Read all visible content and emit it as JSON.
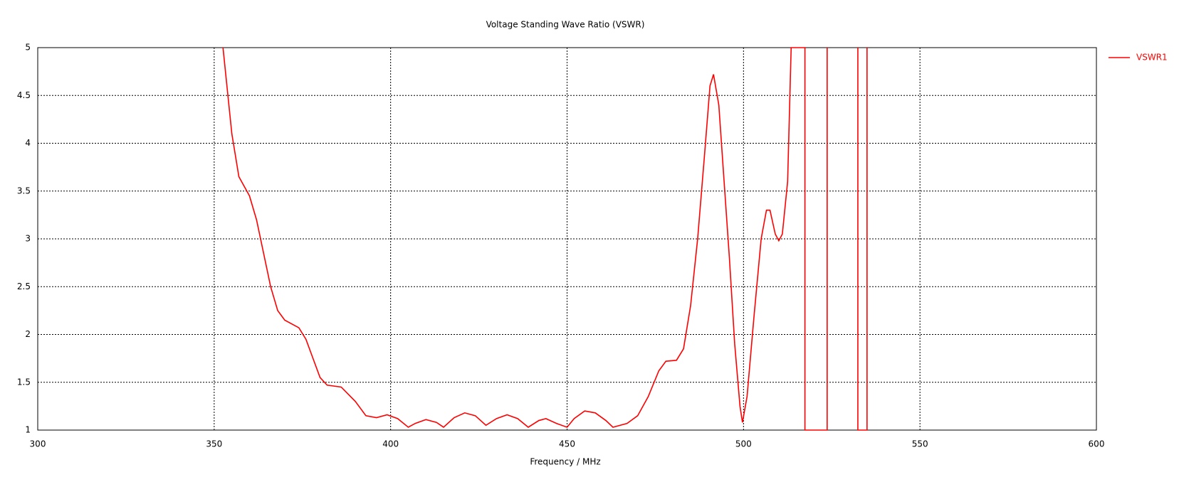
{
  "chart_data": {
    "type": "line",
    "title": "Voltage Standing Wave Ratio (VSWR)",
    "x_label": "Frequency / MHz",
    "xlim": [
      300,
      600
    ],
    "xticks": [
      300,
      350,
      400,
      450,
      500,
      550,
      600
    ],
    "ylim": [
      1,
      5
    ],
    "yticks": [
      1,
      1.5,
      2,
      2.5,
      3,
      3.5,
      4,
      4.5,
      5
    ],
    "grid": true,
    "legend": "right",
    "x": [
      352.5,
      355,
      357,
      360,
      362,
      364,
      366,
      368,
      370,
      374,
      376,
      378,
      380,
      382,
      386,
      390,
      393,
      396,
      399,
      402,
      405,
      407,
      410,
      413,
      415,
      418,
      421,
      424,
      427,
      430,
      433,
      436,
      439,
      442,
      444,
      447,
      450,
      452,
      455,
      458,
      461,
      463,
      467,
      470,
      473,
      476,
      478,
      481,
      483,
      485,
      487,
      489,
      490.5,
      491.5,
      493,
      494.5,
      496,
      497.5,
      499,
      499.7,
      501,
      503,
      505,
      506.5,
      507.5,
      509,
      510,
      511,
      512.5,
      513.5,
      517.4,
      517.4,
      523.7,
      523.7,
      528,
      532.4,
      532.4,
      535,
      535
    ],
    "series": [
      {
        "name": "VSWR1",
        "color": "#ff0000",
        "values": [
          5,
          4.1,
          3.65,
          3.45,
          3.2,
          2.85,
          2.5,
          2.25,
          2.15,
          2.07,
          1.95,
          1.75,
          1.55,
          1.47,
          1.45,
          1.3,
          1.15,
          1.13,
          1.16,
          1.12,
          1.03,
          1.07,
          1.11,
          1.08,
          1.03,
          1.13,
          1.18,
          1.15,
          1.05,
          1.12,
          1.16,
          1.12,
          1.03,
          1.1,
          1.12,
          1.07,
          1.03,
          1.12,
          1.2,
          1.18,
          1.1,
          1.03,
          1.07,
          1.15,
          1.35,
          1.62,
          1.72,
          1.73,
          1.85,
          2.3,
          3.0,
          3.9,
          4.6,
          4.72,
          4.4,
          3.6,
          2.8,
          1.9,
          1.25,
          1.08,
          1.35,
          2.2,
          3.0,
          3.3,
          3.3,
          3.05,
          2.98,
          3.05,
          3.6,
          5,
          5,
          1,
          1,
          5,
          null,
          5,
          1,
          1,
          5
        ]
      }
    ]
  }
}
